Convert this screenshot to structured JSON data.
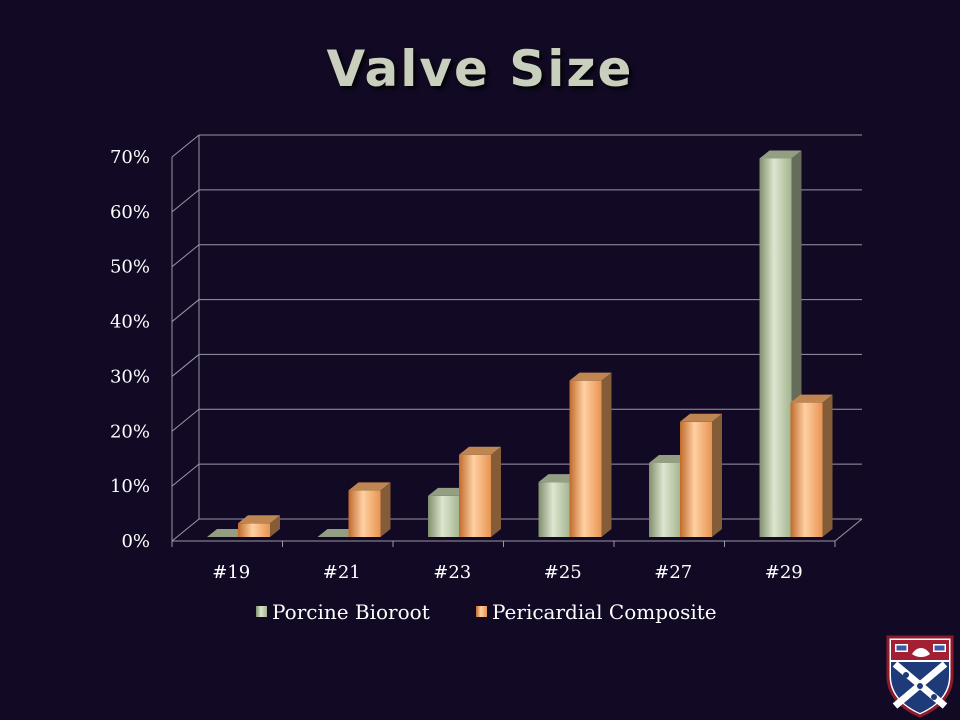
{
  "slide": {
    "title": "Valve Size"
  },
  "colors": {
    "porcine": "#b8c6a4",
    "pericardial": "#f0a866",
    "grid": "#9a96aa"
  },
  "logo": {
    "name": "university-shield"
  },
  "chart_data": {
    "type": "bar",
    "title": "Valve Size",
    "categories": [
      "#19",
      "#21",
      "#23",
      "#25",
      "#27",
      "#29"
    ],
    "series": [
      {
        "name": "Porcine Bioroot",
        "values": [
          0,
          0,
          7.5,
          10,
          13.5,
          69
        ]
      },
      {
        "name": "Pericardial Composite",
        "values": [
          2.5,
          8.5,
          15,
          28.5,
          21,
          24.5
        ]
      }
    ],
    "y_ticks": [
      "0%",
      "10%",
      "20%",
      "30%",
      "40%",
      "50%",
      "60%",
      "70%"
    ],
    "ylim": [
      0,
      70
    ],
    "grid": true,
    "legend": "bottom"
  }
}
